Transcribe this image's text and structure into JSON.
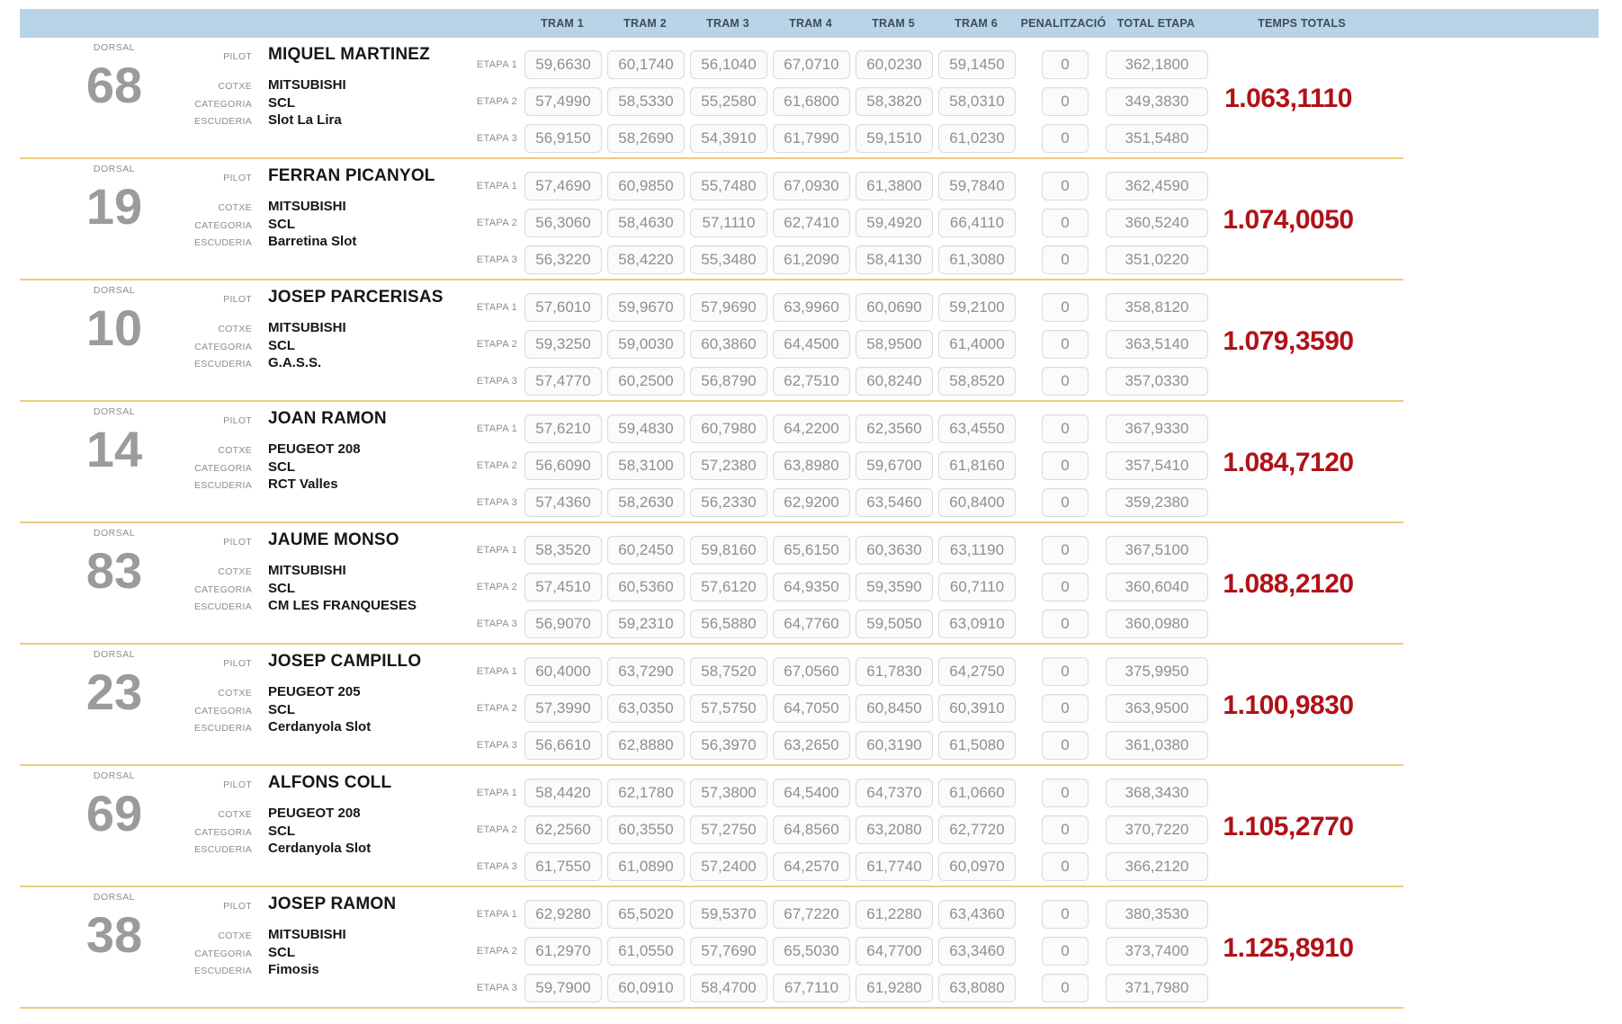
{
  "header": {
    "trams": [
      "TRAM 1",
      "TRAM 2",
      "TRAM 3",
      "TRAM 4",
      "TRAM 5",
      "TRAM 6"
    ],
    "penalitzacio": "PENALITZACIÓ",
    "total_etapa": "TOTAL ETAPA",
    "temps_totals": "TEMPS TOTALS"
  },
  "labels": {
    "dorsal": "DORSAL",
    "pilot": "PILOT",
    "cotxe": "COTXE",
    "categoria": "CATEGORIA",
    "escuderia": "ESCUDERIA",
    "etapes": [
      "ETAPA 1",
      "ETAPA 2",
      "ETAPA 3"
    ]
  },
  "colors": {
    "header_bg": "#b9d3e7",
    "header_text": "#3c4d5c",
    "separator": "#eecb81",
    "cell_text": "#8f8f8f",
    "dorsal": "#9b9b9b",
    "temps_total": "#b01218"
  },
  "competitors": [
    {
      "dorsal": "68",
      "pilot": "MIQUEL MARTINEZ",
      "cotxe": "MITSUBISHI",
      "categoria": "SCL",
      "escuderia": "Slot La Lira",
      "temps_total": "1.063,1110",
      "etapes": [
        {
          "trams": [
            "59,6630",
            "60,1740",
            "56,1040",
            "67,0710",
            "60,0230",
            "59,1450"
          ],
          "penalitzacio": "0",
          "total_etapa": "362,1800"
        },
        {
          "trams": [
            "57,4990",
            "58,5330",
            "55,2580",
            "61,6800",
            "58,3820",
            "58,0310"
          ],
          "penalitzacio": "0",
          "total_etapa": "349,3830"
        },
        {
          "trams": [
            "56,9150",
            "58,2690",
            "54,3910",
            "61,7990",
            "59,1510",
            "61,0230"
          ],
          "penalitzacio": "0",
          "total_etapa": "351,5480"
        }
      ]
    },
    {
      "dorsal": "19",
      "pilot": "FERRAN PICANYOL",
      "cotxe": "MITSUBISHI",
      "categoria": "SCL",
      "escuderia": "Barretina Slot",
      "temps_total": "1.074,0050",
      "etapes": [
        {
          "trams": [
            "57,4690",
            "60,9850",
            "55,7480",
            "67,0930",
            "61,3800",
            "59,7840"
          ],
          "penalitzacio": "0",
          "total_etapa": "362,4590"
        },
        {
          "trams": [
            "56,3060",
            "58,4630",
            "57,1110",
            "62,7410",
            "59,4920",
            "66,4110"
          ],
          "penalitzacio": "0",
          "total_etapa": "360,5240"
        },
        {
          "trams": [
            "56,3220",
            "58,4220",
            "55,3480",
            "61,2090",
            "58,4130",
            "61,3080"
          ],
          "penalitzacio": "0",
          "total_etapa": "351,0220"
        }
      ]
    },
    {
      "dorsal": "10",
      "pilot": "JOSEP PARCERISAS",
      "cotxe": "MITSUBISHI",
      "categoria": "SCL",
      "escuderia": "G.A.S.S.",
      "temps_total": "1.079,3590",
      "etapes": [
        {
          "trams": [
            "57,6010",
            "59,9670",
            "57,9690",
            "63,9960",
            "60,0690",
            "59,2100"
          ],
          "penalitzacio": "0",
          "total_etapa": "358,8120"
        },
        {
          "trams": [
            "59,3250",
            "59,0030",
            "60,3860",
            "64,4500",
            "58,9500",
            "61,4000"
          ],
          "penalitzacio": "0",
          "total_etapa": "363,5140"
        },
        {
          "trams": [
            "57,4770",
            "60,2500",
            "56,8790",
            "62,7510",
            "60,8240",
            "58,8520"
          ],
          "penalitzacio": "0",
          "total_etapa": "357,0330"
        }
      ]
    },
    {
      "dorsal": "14",
      "pilot": "JOAN RAMON",
      "cotxe": "PEUGEOT 208",
      "categoria": "SCL",
      "escuderia": "RCT Valles",
      "temps_total": "1.084,7120",
      "etapes": [
        {
          "trams": [
            "57,6210",
            "59,4830",
            "60,7980",
            "64,2200",
            "62,3560",
            "63,4550"
          ],
          "penalitzacio": "0",
          "total_etapa": "367,9330"
        },
        {
          "trams": [
            "56,6090",
            "58,3100",
            "57,2380",
            "63,8980",
            "59,6700",
            "61,8160"
          ],
          "penalitzacio": "0",
          "total_etapa": "357,5410"
        },
        {
          "trams": [
            "57,4360",
            "58,2630",
            "56,2330",
            "62,9200",
            "63,5460",
            "60,8400"
          ],
          "penalitzacio": "0",
          "total_etapa": "359,2380"
        }
      ]
    },
    {
      "dorsal": "83",
      "pilot": "JAUME MONSO",
      "cotxe": "MITSUBISHI",
      "categoria": "SCL",
      "escuderia": "CM LES FRANQUESES",
      "temps_total": "1.088,2120",
      "etapes": [
        {
          "trams": [
            "58,3520",
            "60,2450",
            "59,8160",
            "65,6150",
            "60,3630",
            "63,1190"
          ],
          "penalitzacio": "0",
          "total_etapa": "367,5100"
        },
        {
          "trams": [
            "57,4510",
            "60,5360",
            "57,6120",
            "64,9350",
            "59,3590",
            "60,7110"
          ],
          "penalitzacio": "0",
          "total_etapa": "360,6040"
        },
        {
          "trams": [
            "56,9070",
            "59,2310",
            "56,5880",
            "64,7760",
            "59,5050",
            "63,0910"
          ],
          "penalitzacio": "0",
          "total_etapa": "360,0980"
        }
      ]
    },
    {
      "dorsal": "23",
      "pilot": "JOSEP CAMPILLO",
      "cotxe": "PEUGEOT 205",
      "categoria": "SCL",
      "escuderia": "Cerdanyola Slot",
      "temps_total": "1.100,9830",
      "etapes": [
        {
          "trams": [
            "60,4000",
            "63,7290",
            "58,7520",
            "67,0560",
            "61,7830",
            "64,2750"
          ],
          "penalitzacio": "0",
          "total_etapa": "375,9950"
        },
        {
          "trams": [
            "57,3990",
            "63,0350",
            "57,5750",
            "64,7050",
            "60,8450",
            "60,3910"
          ],
          "penalitzacio": "0",
          "total_etapa": "363,9500"
        },
        {
          "trams": [
            "56,6610",
            "62,8880",
            "56,3970",
            "63,2650",
            "60,3190",
            "61,5080"
          ],
          "penalitzacio": "0",
          "total_etapa": "361,0380"
        }
      ]
    },
    {
      "dorsal": "69",
      "pilot": "ALFONS COLL",
      "cotxe": "PEUGEOT 208",
      "categoria": "SCL",
      "escuderia": "Cerdanyola Slot",
      "temps_total": "1.105,2770",
      "etapes": [
        {
          "trams": [
            "58,4420",
            "62,1780",
            "57,3800",
            "64,5400",
            "64,7370",
            "61,0660"
          ],
          "penalitzacio": "0",
          "total_etapa": "368,3430"
        },
        {
          "trams": [
            "62,2560",
            "60,3550",
            "57,2750",
            "64,8560",
            "63,2080",
            "62,7720"
          ],
          "penalitzacio": "0",
          "total_etapa": "370,7220"
        },
        {
          "trams": [
            "61,7550",
            "61,0890",
            "57,2400",
            "64,2570",
            "61,7740",
            "60,0970"
          ],
          "penalitzacio": "0",
          "total_etapa": "366,2120"
        }
      ]
    },
    {
      "dorsal": "38",
      "pilot": "JOSEP RAMON",
      "cotxe": "MITSUBISHI",
      "categoria": "SCL",
      "escuderia": "Fimosis",
      "temps_total": "1.125,8910",
      "etapes": [
        {
          "trams": [
            "62,9280",
            "65,5020",
            "59,5370",
            "67,7220",
            "61,2280",
            "63,4360"
          ],
          "penalitzacio": "0",
          "total_etapa": "380,3530"
        },
        {
          "trams": [
            "61,2970",
            "61,0550",
            "57,7690",
            "65,5030",
            "64,7700",
            "63,3460"
          ],
          "penalitzacio": "0",
          "total_etapa": "373,7400"
        },
        {
          "trams": [
            "59,7900",
            "60,0910",
            "58,4700",
            "67,7110",
            "61,9280",
            "63,8080"
          ],
          "penalitzacio": "0",
          "total_etapa": "371,7980"
        }
      ]
    }
  ]
}
